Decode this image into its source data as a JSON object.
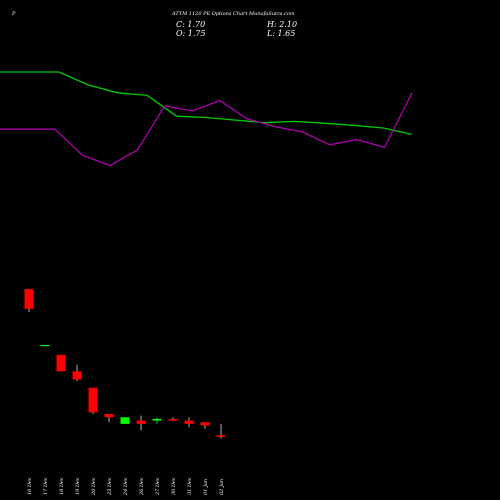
{
  "header": {
    "symbol": "P",
    "title": "ATTM 1120  PE Options  Chart MunafaSutra.com",
    "close_label": "C: 1.70",
    "open_label": "O: 1.75",
    "high_label": "H: 2.10",
    "low_label": "L: 1.65"
  },
  "colors": {
    "background": "#000000",
    "text": "#ffffff",
    "up_candle": "#00ff00",
    "down_candle": "#ff0000",
    "line_green": "#00cc00",
    "line_magenta": "#aa00aa"
  },
  "chart_data": {
    "type": "candlestick",
    "x_ticks": [
      "16 Dec",
      "17 Dec",
      "18 Dec",
      "19 Dec",
      "20 Dec",
      "23 Dec",
      "24 Dec",
      "26 Dec",
      "27 Dec",
      "30 Dec",
      "31 Dec",
      "01 Jan",
      "02 Jan"
    ],
    "candles": [
      {
        "date": "16 Dec",
        "open": 6.2,
        "high": 6.2,
        "low": 5.5,
        "close": 5.6
      },
      {
        "date": "17 Dec",
        "open": 4.5,
        "high": 4.5,
        "low": 4.5,
        "close": 4.5
      },
      {
        "date": "18 Dec",
        "open": 4.2,
        "high": 4.2,
        "low": 3.7,
        "close": 3.7
      },
      {
        "date": "19 Dec",
        "open": 3.7,
        "high": 3.9,
        "low": 3.4,
        "close": 3.45
      },
      {
        "date": "20 Dec",
        "open": 3.2,
        "high": 3.2,
        "low": 2.4,
        "close": 2.45
      },
      {
        "date": "23 Dec",
        "open": 2.4,
        "high": 2.4,
        "low": 2.15,
        "close": 2.3
      },
      {
        "date": "24 Dec",
        "open": 2.1,
        "high": 2.3,
        "low": 2.1,
        "close": 2.3
      },
      {
        "date": "26 Dec",
        "open": 2.2,
        "high": 2.35,
        "low": 1.9,
        "close": 2.1
      },
      {
        "date": "27 Dec",
        "open": 2.2,
        "high": 2.3,
        "low": 2.1,
        "close": 2.25
      },
      {
        "date": "30 Dec",
        "open": 2.25,
        "high": 2.3,
        "low": 2.2,
        "close": 2.2
      },
      {
        "date": "31 Dec",
        "open": 2.2,
        "high": 2.3,
        "low": 2.0,
        "close": 2.1
      },
      {
        "date": "01 Jan",
        "open": 2.15,
        "high": 2.15,
        "low": 1.95,
        "close": 2.05
      },
      {
        "date": "02 Jan",
        "open": 1.75,
        "high": 2.1,
        "low": 1.65,
        "close": 1.7
      }
    ],
    "series": [
      {
        "color": "#00cc00",
        "values": [
          80,
          80,
          80,
          75,
          72,
          71,
          63,
          62.5,
          61.5,
          60.5,
          61,
          60.3,
          59.5,
          58.5,
          56
        ]
      },
      {
        "color": "#aa00aa",
        "values": [
          58,
          58,
          58,
          48,
          44,
          50,
          67,
          65,
          69,
          62,
          59,
          57,
          52,
          54,
          51,
          72
        ]
      }
    ],
    "ylim": [
      1.0,
      8.0
    ],
    "line_ylim": [
      0,
      100
    ],
    "grid": false,
    "legend": "none"
  }
}
